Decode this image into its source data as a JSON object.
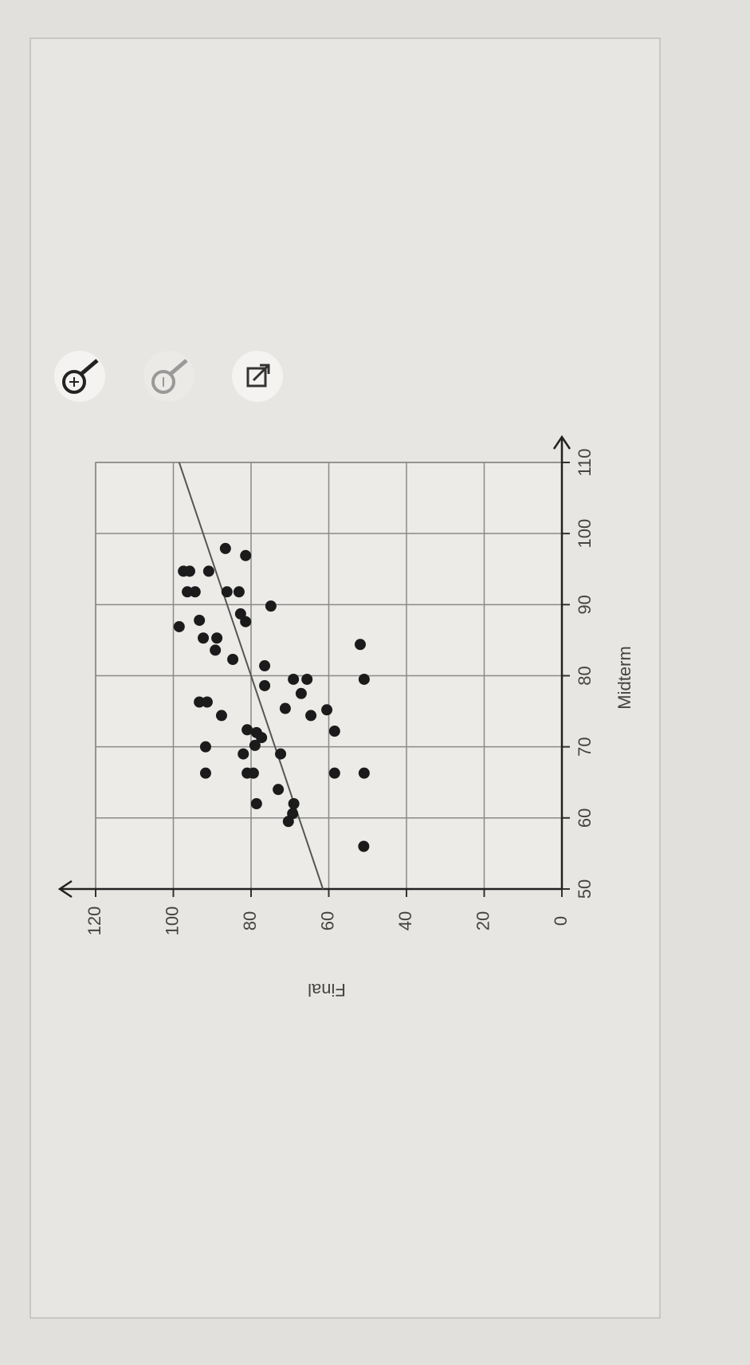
{
  "chart_data": {
    "type": "scatter",
    "x_label": "Midterm",
    "y_label": "Final",
    "x": [
      56,
      62,
      64,
      62,
      59.5,
      60.6,
      66.3,
      66.3,
      66.3,
      66.3,
      66.3,
      70,
      69,
      70.2,
      72.4,
      72,
      71.3,
      69,
      72.2,
      74.4,
      76.3,
      76.3,
      74.4,
      75.2,
      75.4,
      77.5,
      78.6,
      79.5,
      79.5,
      79.5,
      81.4,
      82.3,
      83.6,
      85.3,
      85.3,
      84.4,
      87.8,
      86.9,
      87.6,
      88.7,
      89.8,
      91.8,
      91.8,
      91.8,
      91.8,
      94.7,
      94.7,
      94.7,
      96.9,
      97.9
    ],
    "values": [
      51,
      78.6,
      73,
      69,
      70.4,
      69.3,
      91.7,
      81,
      79.4,
      58.5,
      50.9,
      91.7,
      82,
      79,
      81,
      78.6,
      77.3,
      72.4,
      58.5,
      87.6,
      93.3,
      91.3,
      64.6,
      60.5,
      71.2,
      67.1,
      76.5,
      69.1,
      65.6,
      50.9,
      76.5,
      84.7,
      89.2,
      92.3,
      88.8,
      51.9,
      93.3,
      98.5,
      81.4,
      82.7,
      74.9,
      86.2,
      83.1,
      96.4,
      94.4,
      90.9,
      97.4,
      95.8,
      81.4,
      86.6
    ],
    "color": "#1b1b1b",
    "trend_line": {
      "x": [
        50,
        110
      ],
      "values": [
        61.5,
        98.5
      ],
      "color": "#555555"
    },
    "xlim": [
      50,
      110
    ],
    "xticks": [
      50,
      60,
      70,
      80,
      90,
      100,
      110
    ],
    "ylim": [
      0,
      120
    ],
    "yticks": [
      0,
      20,
      40,
      60,
      80,
      100,
      120
    ],
    "grid": true
  }
}
